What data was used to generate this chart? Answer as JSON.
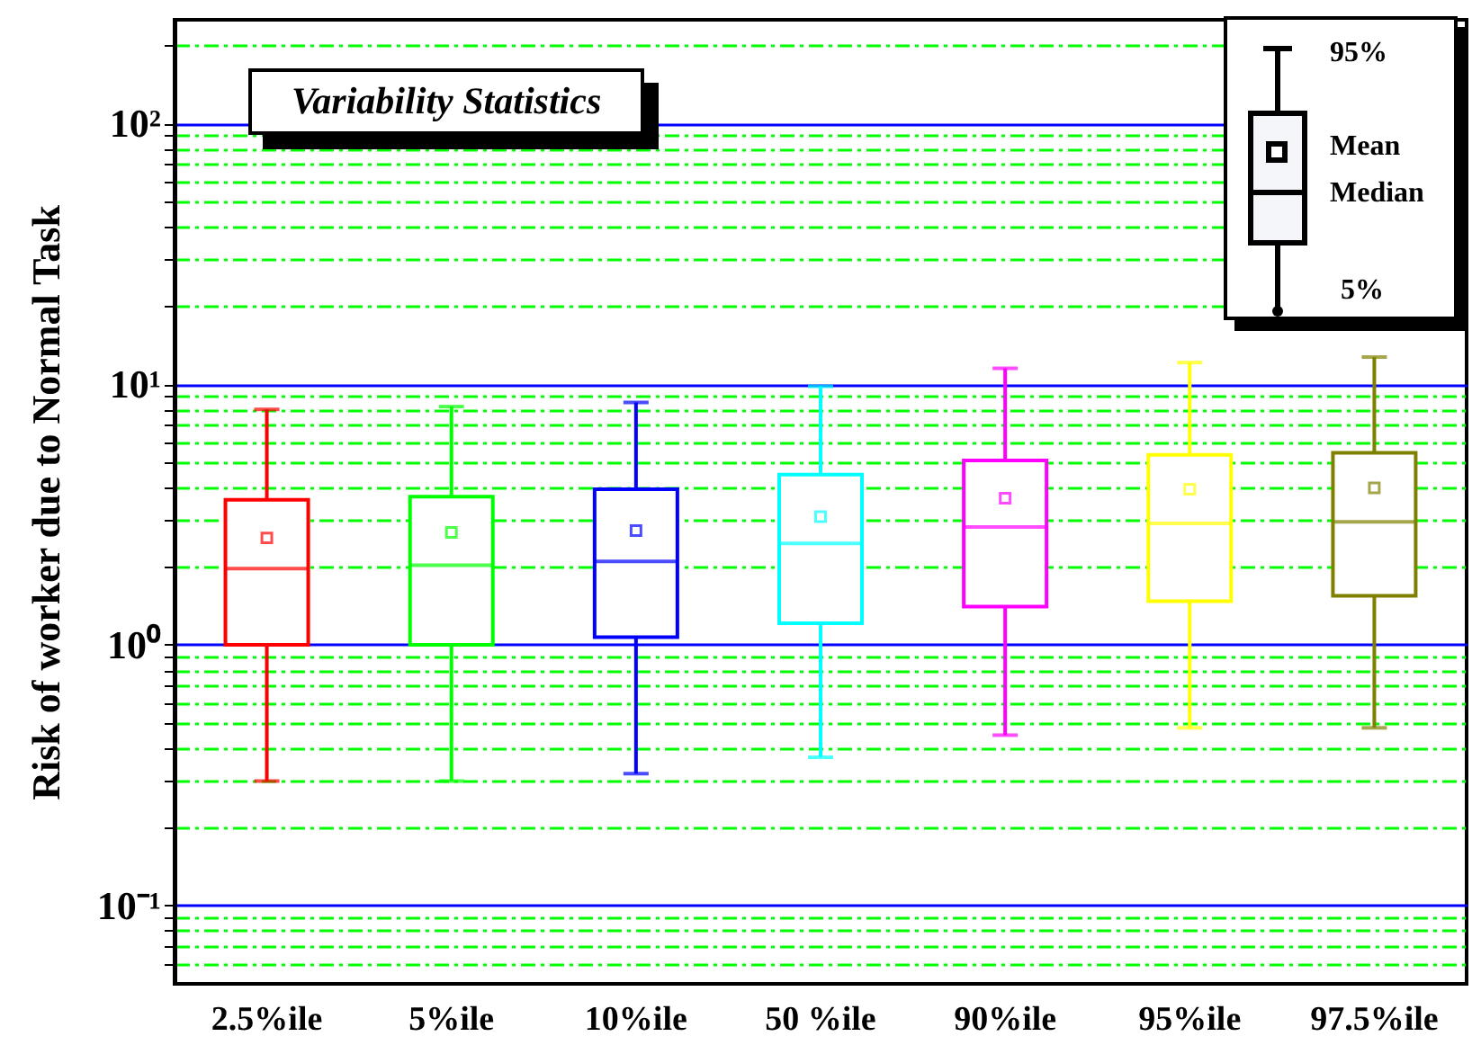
{
  "chart_data": {
    "type": "box",
    "title": "Variability Statistics",
    "ylabel": "Risk of worker due to Normal Task",
    "categories": [
      "2.5%ile",
      "5%ile",
      "10%ile",
      "50 %ile",
      "90%ile",
      "95%ile",
      "97.5%ile"
    ],
    "colors": [
      "#ff0000",
      "#00ff00",
      "#0000ff",
      "#00ffff",
      "#ff00ff",
      "#ffff00",
      "#808000"
    ],
    "boxes": [
      {
        "low": 0.3,
        "q1": 1.0,
        "median": 1.96,
        "q3": 3.6,
        "high": 8.0,
        "mean": 2.57
      },
      {
        "low": 0.3,
        "q1": 1.0,
        "median": 2.02,
        "q3": 3.7,
        "high": 8.2,
        "mean": 2.7
      },
      {
        "low": 0.32,
        "q1": 1.07,
        "median": 2.09,
        "q3": 3.95,
        "high": 8.5,
        "mean": 2.74
      },
      {
        "low": 0.37,
        "q1": 1.21,
        "median": 2.45,
        "q3": 4.5,
        "high": 9.8,
        "mean": 3.1
      },
      {
        "low": 0.45,
        "q1": 1.4,
        "median": 2.83,
        "q3": 5.1,
        "high": 11.5,
        "mean": 3.65
      },
      {
        "low": 0.48,
        "q1": 1.47,
        "median": 2.92,
        "q3": 5.35,
        "high": 12.1,
        "mean": 3.95
      },
      {
        "low": 0.48,
        "q1": 1.54,
        "median": 2.96,
        "q3": 5.45,
        "high": 12.7,
        "mean": 4.0
      }
    ],
    "log": true,
    "ylim": [
      0.05,
      250
    ],
    "yticks": [
      {
        "value": 0.06,
        "label": null
      },
      {
        "value": 0.07,
        "label": null
      },
      {
        "value": 0.08,
        "label": null
      },
      {
        "value": 0.09,
        "label": null
      },
      {
        "value": 0.1,
        "label": "10⁻¹"
      },
      {
        "value": 0.2,
        "label": null
      },
      {
        "value": 0.3,
        "label": null
      },
      {
        "value": 0.4,
        "label": null
      },
      {
        "value": 0.5,
        "label": null
      },
      {
        "value": 0.6,
        "label": null
      },
      {
        "value": 0.7,
        "label": null
      },
      {
        "value": 0.8,
        "label": null
      },
      {
        "value": 0.9,
        "label": null
      },
      {
        "value": 1,
        "label": "10⁰"
      },
      {
        "value": 2,
        "label": null
      },
      {
        "value": 3,
        "label": null
      },
      {
        "value": 4,
        "label": null
      },
      {
        "value": 5,
        "label": null
      },
      {
        "value": 6,
        "label": null
      },
      {
        "value": 7,
        "label": null
      },
      {
        "value": 8,
        "label": null
      },
      {
        "value": 9,
        "label": null
      },
      {
        "value": 10,
        "label": "10¹"
      },
      {
        "value": 20,
        "label": null
      },
      {
        "value": 30,
        "label": null
      },
      {
        "value": 40,
        "label": null
      },
      {
        "value": 50,
        "label": null
      },
      {
        "value": 60,
        "label": null
      },
      {
        "value": 70,
        "label": null
      },
      {
        "value": 80,
        "label": null
      },
      {
        "value": 90,
        "label": null
      },
      {
        "value": 100,
        "label": "10²"
      },
      {
        "value": 200,
        "label": null
      }
    ],
    "grid": "y",
    "annotations": [
      "95%",
      "Mean",
      "Median",
      "5%"
    ]
  }
}
